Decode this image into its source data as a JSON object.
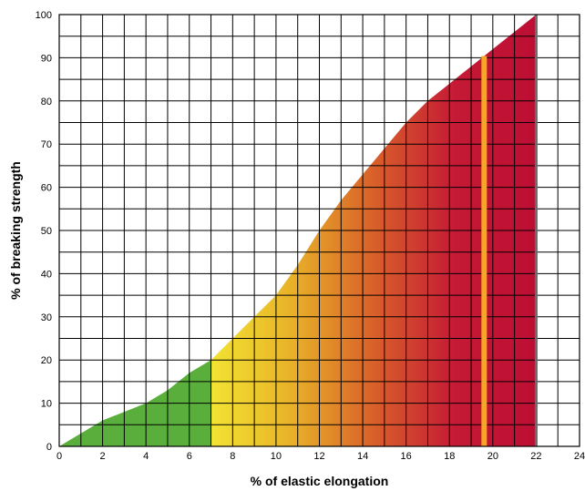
{
  "chart_data": {
    "type": "area",
    "title": "",
    "xlabel": "% of elastic elongation",
    "ylabel": "% of breaking strength",
    "xlim": [
      0,
      24
    ],
    "ylim": [
      0,
      100
    ],
    "x_ticks": [
      0,
      2,
      4,
      6,
      8,
      10,
      12,
      14,
      16,
      18,
      20,
      22,
      24
    ],
    "y_ticks": [
      0,
      10,
      20,
      30,
      40,
      50,
      60,
      70,
      80,
      90,
      100
    ],
    "grid": true,
    "grid_minor_x": 1,
    "grid_minor_y": 5,
    "series": [
      {
        "x": [
          0,
          1,
          2,
          3,
          4,
          5,
          6,
          7,
          8,
          9,
          10,
          11,
          12,
          13,
          14,
          15,
          16,
          17,
          18,
          19,
          20,
          21,
          22
        ],
        "y": [
          0,
          3,
          6,
          8,
          10,
          13,
          17,
          20,
          25,
          30,
          35,
          42,
          50,
          57,
          63,
          69,
          75,
          80,
          84,
          88,
          92,
          96,
          100
        ]
      }
    ],
    "color_zones": [
      {
        "from": 0,
        "to": 7,
        "color": "#5aaf3c"
      },
      {
        "from": 7,
        "to": 22,
        "gradient": [
          "#f2e432",
          "#e8b128",
          "#d9602a",
          "#c51a35",
          "#bc0e33"
        ]
      }
    ],
    "marker_line": {
      "x": 19.6,
      "color": "#f5a623"
    },
    "end_line": {
      "x": 22,
      "color": "#6b6b6b"
    }
  }
}
